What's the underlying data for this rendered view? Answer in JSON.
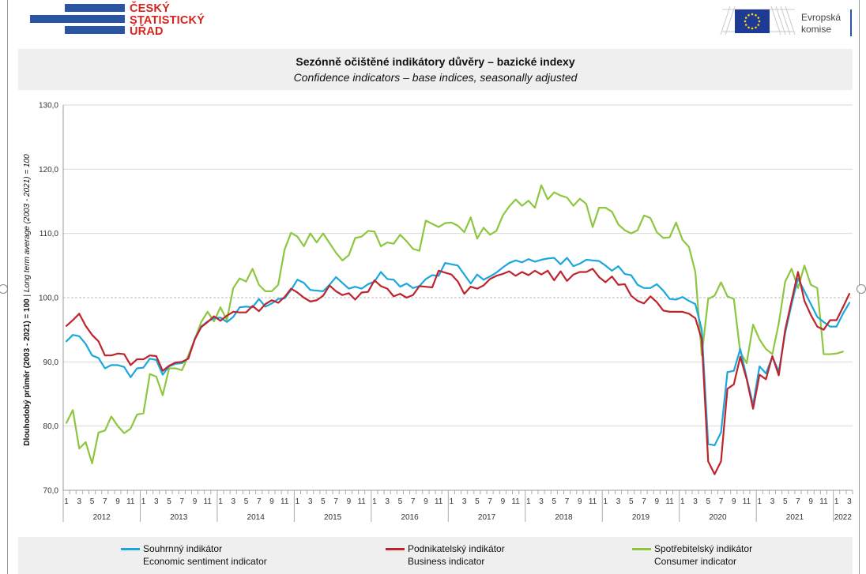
{
  "header": {
    "czso_logo_lines": [
      "ČESKÝ",
      "STATISTICKÝ",
      "ÚŘAD"
    ],
    "ec_logo_lines": [
      "Evropská",
      "komise"
    ]
  },
  "chart_data": {
    "type": "line",
    "title": "Sezónně očištěné indikátory důvěry – bazické indexy",
    "subtitle": "Confidence indicators – base indices, seasonally adjusted",
    "ylabel_cs": "Dlouhodobý průměr (2003 - 2021) = 100",
    "ylabel_sep": " | ",
    "ylabel_en": "Long term average (2003 - 2021) = 100",
    "ylim": [
      70,
      130
    ],
    "yticks": [
      "70,0",
      "80,0",
      "90,0",
      "100,0",
      "110,0",
      "120,0",
      "130,0"
    ],
    "x_month_labels": [
      "1",
      "3",
      "5",
      "7",
      "9",
      "11"
    ],
    "years": [
      "2012",
      "2013",
      "2014",
      "2015",
      "2016",
      "2017",
      "2018",
      "2019",
      "2020",
      "2021",
      "2022"
    ],
    "last_period": "2022-01",
    "grid": true,
    "legend_position": "bottom",
    "series": [
      {
        "name": "Souhrnný indikátor",
        "name_en": "Economic sentiment indicator",
        "color": "#1aa7de",
        "values": [
          93.2,
          94.2,
          94.0,
          92.8,
          91.0,
          90.6,
          89.0,
          89.5,
          89.5,
          89.2,
          87.6,
          89.0,
          89.1,
          90.5,
          90.3,
          88.0,
          89.3,
          89.7,
          89.8,
          90.6,
          93.6,
          95.5,
          96.3,
          96.8,
          96.9,
          96.2,
          97.0,
          98.5,
          98.6,
          98.5,
          99.8,
          98.6,
          99.1,
          99.8,
          99.9,
          101.2,
          102.8,
          102.3,
          101.2,
          101.1,
          101.0,
          102.0,
          103.2,
          102.3,
          101.4,
          101.7,
          101.4,
          102.1,
          102.5,
          104.0,
          102.9,
          102.8,
          101.7,
          102.2,
          101.5,
          101.8,
          102.9,
          103.5,
          103.4,
          105.4,
          105.2,
          105.0,
          103.6,
          102.2,
          103.6,
          102.8,
          103.3,
          103.9,
          104.7,
          105.4,
          105.8,
          105.5,
          106.0,
          105.6,
          105.9,
          106.1,
          106.2,
          105.2,
          106.2,
          104.9,
          105.3,
          105.9,
          105.8,
          105.7,
          105.0,
          104.2,
          104.9,
          103.7,
          103.5,
          102.0,
          101.5,
          101.5,
          102.1,
          101.1,
          99.8,
          99.7,
          100.1,
          99.5,
          99.0,
          95.0,
          77.2,
          77.0,
          79.0,
          88.4,
          88.6,
          92.0,
          87.5,
          83.3,
          89.3,
          88.2,
          90.8,
          88.5,
          94.5,
          99.0,
          103.0,
          101.0,
          99.0,
          97.0,
          96.2,
          95.5,
          95.5,
          97.5,
          99.2
        ]
      },
      {
        "name": "Podnikatelský indikátor",
        "name_en": "Business indicator",
        "color": "#c0232b",
        "values": [
          95.6,
          96.5,
          97.5,
          95.6,
          94.2,
          93.2,
          91.0,
          91.0,
          91.3,
          91.2,
          89.5,
          90.4,
          90.4,
          91.0,
          90.9,
          88.6,
          89.4,
          89.9,
          90.0,
          90.5,
          93.5,
          95.4,
          96.2,
          97.1,
          96.4,
          97.2,
          97.8,
          97.7,
          97.7,
          98.7,
          97.9,
          99.0,
          99.6,
          99.2,
          100.1,
          101.4,
          100.8,
          100.0,
          99.4,
          99.6,
          100.3,
          101.9,
          101.0,
          100.4,
          100.7,
          99.7,
          100.8,
          100.9,
          102.7,
          101.8,
          101.4,
          100.2,
          100.6,
          100.0,
          100.4,
          101.8,
          101.7,
          101.6,
          104.2,
          103.9,
          103.6,
          102.5,
          100.6,
          101.7,
          101.4,
          101.9,
          102.9,
          103.4,
          103.7,
          104.1,
          103.4,
          104.0,
          103.5,
          104.2,
          103.6,
          104.2,
          102.7,
          104.1,
          102.6,
          103.6,
          104.0,
          104.0,
          104.5,
          103.2,
          102.4,
          103.3,
          102.0,
          102.1,
          100.3,
          99.5,
          99.1,
          100.2,
          99.3,
          98.0,
          97.8,
          97.8,
          97.8,
          97.5,
          96.8,
          93.5,
          74.5,
          72.5,
          74.5,
          85.8,
          86.5,
          90.8,
          87.3,
          82.7,
          88.0,
          87.3,
          90.9,
          87.9,
          95.0,
          99.5,
          104.0,
          99.5,
          97.3,
          95.5,
          95.0,
          96.5,
          96.5,
          98.5,
          100.6
        ]
      },
      {
        "name": "Spotřebitelský indikátor",
        "name_en": "Consumer indicator",
        "color": "#8dc63f",
        "values": [
          80.5,
          82.5,
          76.5,
          77.5,
          74.2,
          79.0,
          79.3,
          81.5,
          80.0,
          78.9,
          79.6,
          81.8,
          82.0,
          88.1,
          87.7,
          84.8,
          89.0,
          89.0,
          88.7,
          91.0,
          93.5,
          96.2,
          97.8,
          96.3,
          98.5,
          96.5,
          101.5,
          103.0,
          102.5,
          104.5,
          102.0,
          101.0,
          101.0,
          102.0,
          107.5,
          110.1,
          109.5,
          108.0,
          110.0,
          108.6,
          110.0,
          108.5,
          107.0,
          105.8,
          106.6,
          109.3,
          109.5,
          110.4,
          110.3,
          108.0,
          108.6,
          108.4,
          109.8,
          108.8,
          107.6,
          107.3,
          112.0,
          111.5,
          111.0,
          111.6,
          111.7,
          111.2,
          110.2,
          112.5,
          109.2,
          110.9,
          109.8,
          110.4,
          112.8,
          114.2,
          115.3,
          114.3,
          115.1,
          114.0,
          117.5,
          115.3,
          116.4,
          115.9,
          115.6,
          114.3,
          115.4,
          114.6,
          111.0,
          114.0,
          114.0,
          113.4,
          111.4,
          110.5,
          110.0,
          110.5,
          112.8,
          112.4,
          110.2,
          109.3,
          109.4,
          111.7,
          109.0,
          107.9,
          104.0,
          91.0,
          99.8,
          100.3,
          102.4,
          100.2,
          99.8,
          91.5,
          89.8,
          95.8,
          93.5,
          92.0,
          91.2,
          96.0,
          102.5,
          104.5,
          101.5,
          105.0,
          102.0,
          101.5,
          91.2,
          91.2,
          91.3,
          91.6
        ]
      }
    ]
  }
}
